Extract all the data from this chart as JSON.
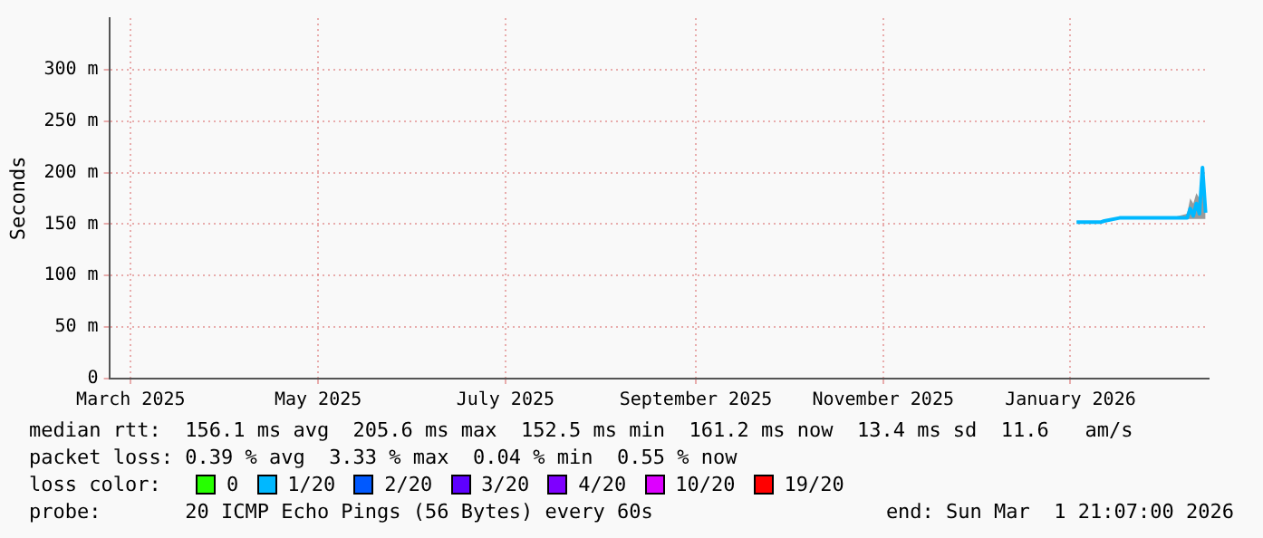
{
  "chart_data": {
    "type": "line",
    "ylabel": "Seconds",
    "x": [
      "2026-01-17",
      "2026-01-25",
      "2026-01-26",
      "2026-01-31",
      "2026-02-10",
      "2026-02-18",
      "2026-02-22",
      "2026-02-23",
      "2026-02-24",
      "2026-02-25",
      "2026-02-26",
      "2026-02-27",
      "2026-02-28"
    ],
    "xlim": [
      "2025-03-08",
      "2026-03-01"
    ],
    "xticks": [
      {
        "value": "2025-03-15",
        "label": "March 2025"
      },
      {
        "value": "2025-05-15",
        "label": "May 2025"
      },
      {
        "value": "2025-07-15",
        "label": "July 2025"
      },
      {
        "value": "2025-09-15",
        "label": "September 2025"
      },
      {
        "value": "2025-11-15",
        "label": "November 2025"
      },
      {
        "value": "2026-01-15",
        "label": "January 2026"
      }
    ],
    "ylim": [
      0,
      350
    ],
    "yticks": [
      0,
      {
        "value": 50,
        "label": "50 m"
      },
      {
        "value": 100,
        "label": "100 m"
      },
      {
        "value": 150,
        "label": "150 m"
      },
      {
        "value": 200,
        "label": "200 m"
      },
      {
        "value": 250,
        "label": "250 m"
      },
      {
        "value": 300,
        "label": "300 m"
      }
    ],
    "grid": true,
    "legend": "bottom",
    "legend_title": "loss color:",
    "marker": "none",
    "line_style": "solid",
    "series": [
      {
        "color": "#00b8ff",
        "values": [
          152,
          152,
          153,
          156,
          156,
          156,
          156,
          165,
          158,
          170,
          160,
          205,
          161
        ],
        "lower": [
          152,
          152,
          152,
          155,
          155,
          155,
          155,
          155,
          155,
          155,
          155,
          155,
          155
        ],
        "upper": [
          153,
          153,
          154,
          157,
          157,
          157,
          160,
          175,
          170,
          180,
          175,
          205,
          178
        ]
      },
      {
        "name": "0",
        "color": "#26ff00",
        "values": [
          null,
          null,
          null,
          null,
          null,
          null,
          null,
          null,
          null,
          null,
          null,
          null,
          null
        ]
      },
      {
        "name": "1/20",
        "color": "#00b8ff",
        "values": [
          null,
          null,
          null,
          null,
          null,
          null,
          null,
          null,
          null,
          null,
          null,
          null,
          null
        ]
      },
      {
        "name": "2/20",
        "color": "#0059ff",
        "values": [
          null,
          null,
          null,
          null,
          null,
          null,
          null,
          null,
          null,
          null,
          null,
          null,
          null
        ]
      },
      {
        "name": "3/20",
        "color": "#5e00ff",
        "values": [
          null,
          null,
          null,
          null,
          null,
          null,
          null,
          null,
          null,
          null,
          null,
          null,
          null
        ]
      },
      {
        "name": "4/20",
        "color": "#7e00ff",
        "values": [
          null,
          null,
          null,
          null,
          null,
          null,
          null,
          null,
          null,
          null,
          null,
          null,
          null
        ]
      },
      {
        "name": "10/20",
        "color": "#dd00ff",
        "values": [
          null,
          null,
          null,
          null,
          null,
          null,
          null,
          null,
          null,
          null,
          null,
          null,
          null
        ]
      },
      {
        "name": "19/20",
        "color": "#ff0000",
        "values": [
          null,
          null,
          null,
          null,
          null,
          null,
          null,
          null,
          null,
          null,
          null,
          null,
          null
        ]
      }
    ],
    "annotations": [
      "median rtt:  156.1 ms avg  205.6 ms max  152.5 ms min  161.2 ms now  13.4 ms sd  11.6   am/s",
      "packet loss: 0.39 % avg  3.33 % max  0.04 % min  0.55 % now",
      "probe:       20 ICMP Echo Pings (56 Bytes) every 60s",
      "end: Sun Mar  1 21:07:00 2026"
    ]
  }
}
